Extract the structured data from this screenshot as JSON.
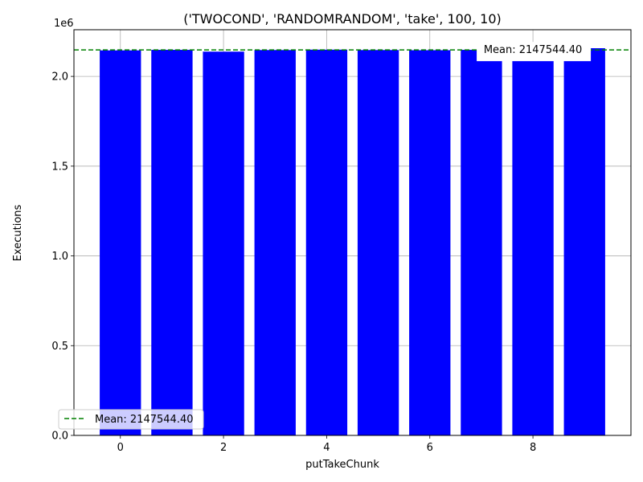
{
  "chart_data": {
    "type": "bar",
    "title": "('TWOCOND', 'RANDOMRANDOM', 'take', 100, 10)",
    "xlabel": "putTakeChunk",
    "ylabel": "Executions",
    "y_offset_label": "1e6",
    "categories": [
      0,
      1,
      2,
      3,
      4,
      5,
      6,
      7,
      8,
      9
    ],
    "values": [
      2145000,
      2148000,
      2138000,
      2147000,
      2149000,
      2147000,
      2146000,
      2148000,
      2149000,
      2157000
    ],
    "bar_color": "#0000ff",
    "xlim": [
      -0.9,
      9.9
    ],
    "ylim": [
      0,
      2260000
    ],
    "x_ticks": [
      0,
      2,
      4,
      6,
      8
    ],
    "x_tick_labels": [
      "0",
      "2",
      "4",
      "6",
      "8"
    ],
    "y_ticks": [
      0,
      500000,
      1000000,
      1500000,
      2000000
    ],
    "y_tick_labels": [
      "0.0",
      "0.5",
      "1.0",
      "1.5",
      "2.0"
    ],
    "grid": true,
    "mean": {
      "value": 2147544.4,
      "label": "Mean: 2147544.40",
      "color": "#008000",
      "line_style": "dashed"
    },
    "annotation": {
      "text": "Mean: 2147544.40",
      "x": 8
    },
    "legend": {
      "placement": "lower-left",
      "entries": [
        "Mean: 2147544.40"
      ]
    }
  }
}
